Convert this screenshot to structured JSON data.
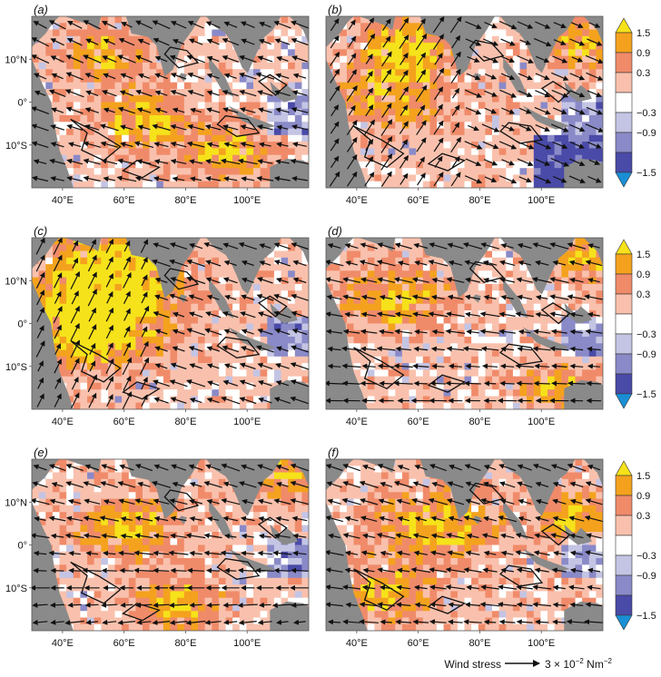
{
  "chart_data": {
    "type": "heatmap",
    "map_extent": {
      "lon": [
        30,
        120
      ],
      "lat": [
        -20,
        20
      ]
    },
    "lon_ticks": [
      "40°E",
      "60°E",
      "80°E",
      "100°E"
    ],
    "lat_ticks": [
      "10°N",
      "0°",
      "10°S"
    ],
    "colorbar": {
      "levels": [
        -1.5,
        -0.9,
        -0.3,
        0.3,
        0.9,
        1.5
      ],
      "labels": [
        "1.5",
        "0.9",
        "0.3",
        "−0.3",
        "−0.9",
        "−1.5"
      ],
      "colors": [
        "#1a8fd6",
        "#4a4aa8",
        "#8a8ac8",
        "#c4c4e4",
        "#ffffff",
        "#f9c1ad",
        "#f08b6a",
        "#f4a21e",
        "#f6e21a"
      ]
    },
    "land_color": "#8a8a8a",
    "arrow_color": "#111111",
    "panels": [
      {
        "label": "(a)",
        "max_region": "southeast Arabian Sea / western basin",
        "arrow_pattern": "westward-southwestward, strong east of 100°E"
      },
      {
        "label": "(b)",
        "max_region": "Somali coast",
        "arrow_pattern": "northeastward in Arabian Sea, southeastward in Bay of Bengal"
      },
      {
        "label": "(c)",
        "max_region": "western Arabian Sea",
        "arrow_pattern": "strong northeastward Somali jet"
      },
      {
        "label": "(d)",
        "max_region": "South China Sea",
        "arrow_pattern": "westward across equatorial basin"
      },
      {
        "label": "(e)",
        "max_region": "South China Sea",
        "arrow_pattern": "weaker westward flow"
      },
      {
        "label": "(f)",
        "max_region": "South China Sea",
        "arrow_pattern": "westward equatorial flow"
      }
    ],
    "legend": {
      "label": "Wind stress",
      "scale_text": "3 × 10",
      "scale_exp": "−2",
      "unit": "Nm",
      "unit_exp": "−2"
    }
  }
}
